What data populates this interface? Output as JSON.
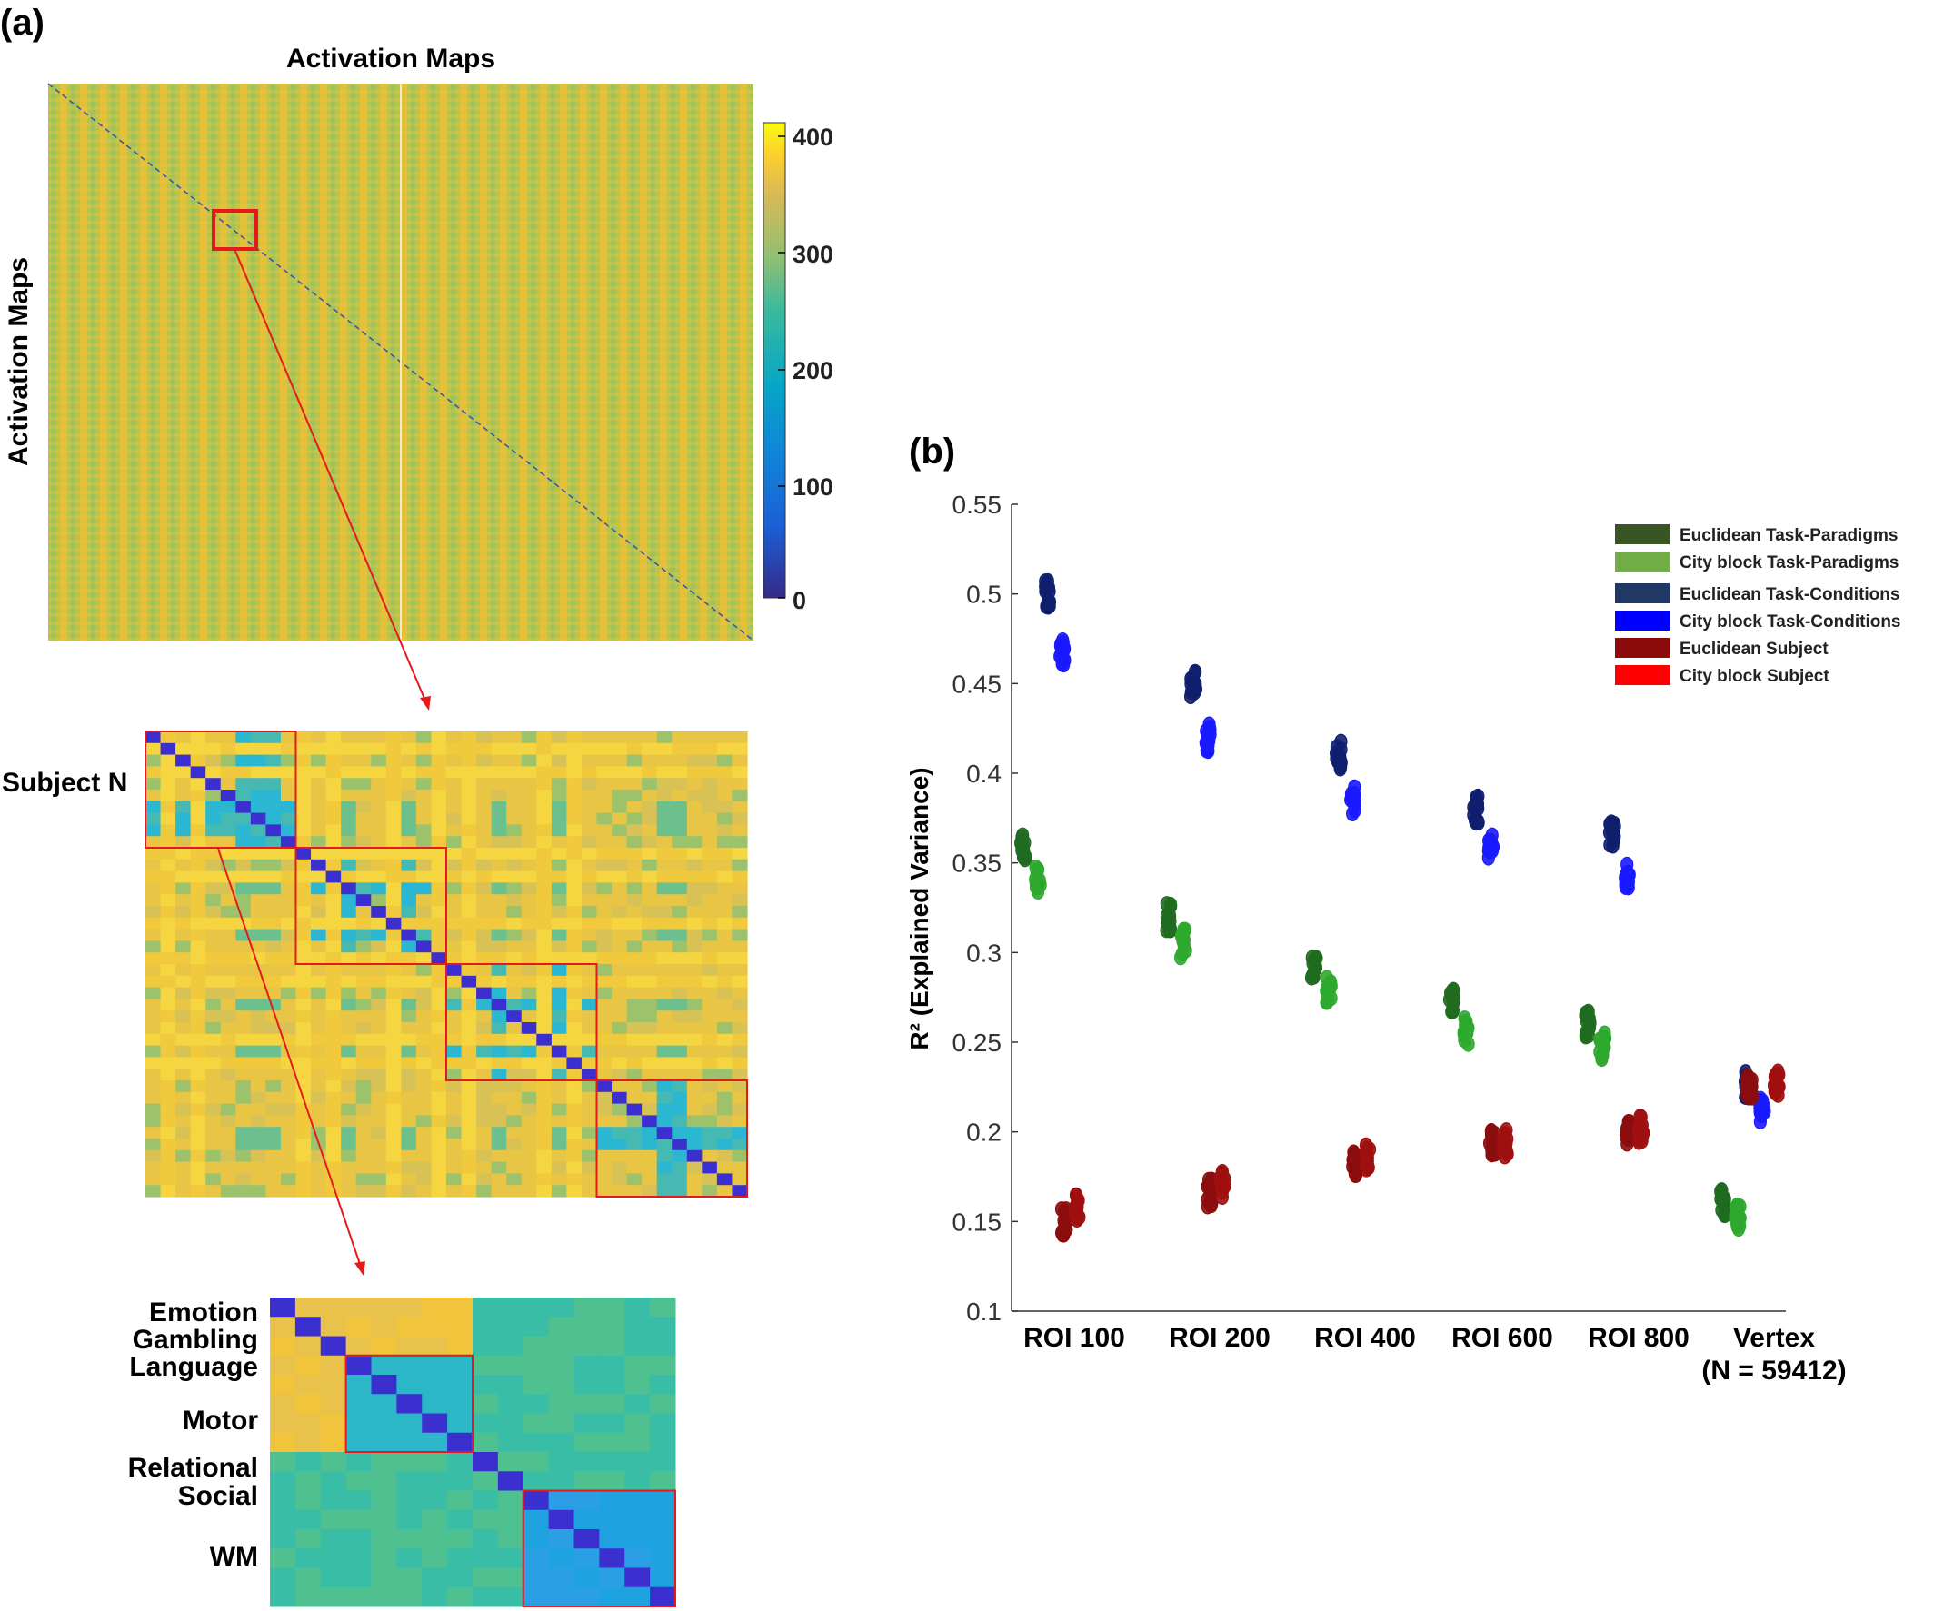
{
  "panel_a": {
    "label": "(a)",
    "top_heatmap": {
      "title": "Activation Maps",
      "ylabel": "Activation Maps",
      "colorbar_ticks": [
        "400",
        "300",
        "200",
        "100",
        "0"
      ]
    },
    "subject_heatmap": {
      "label": "Subject N"
    },
    "task_heatmap": {
      "labels": [
        "Emotion",
        "Gambling",
        "Language",
        "Motor",
        "Relational",
        "Social",
        "WM"
      ]
    },
    "colors": {
      "parula_low": "#352a87",
      "parula_mid": "#21b3c4",
      "parula_high": "#f9fb0e",
      "highlight": "#e41a1c"
    }
  },
  "panel_b": {
    "label": "(b)"
  },
  "chart_data": {
    "type": "scatter",
    "title": "",
    "xlabel": "",
    "ylabel": "R² (Explained Variance)",
    "ylim": [
      0.1,
      0.55
    ],
    "yticks": [
      "0.1",
      "0.15",
      "0.2",
      "0.25",
      "0.3",
      "0.35",
      "0.4",
      "0.45",
      "0.5",
      "0.55"
    ],
    "categories": [
      "ROI 100",
      "ROI 200",
      "ROI 400",
      "ROI 600",
      "ROI 800",
      "Vertex"
    ],
    "category_sublabels": [
      "",
      "",
      "",
      "",
      "",
      "(N = 59412)"
    ],
    "legend_position": "top-right",
    "grid": false,
    "series": [
      {
        "name": "Euclidean Task-Paradigms",
        "color": "#1f6b1f",
        "values": [
          0.358,
          0.32,
          0.29,
          0.272,
          0.26,
          0.161
        ]
      },
      {
        "name": "City block Task-Paradigms",
        "color": "#2ea82e",
        "values": [
          0.34,
          0.305,
          0.28,
          0.256,
          0.248,
          0.153
        ]
      },
      {
        "name": "Euclidean Task-Conditions",
        "color": "#0f1f6e",
        "values": [
          0.5,
          0.45,
          0.41,
          0.38,
          0.365,
          0.226
        ]
      },
      {
        "name": "City block Task-Conditions",
        "color": "#1a1aff",
        "values": [
          0.467,
          0.42,
          0.385,
          0.358,
          0.343,
          0.213
        ]
      },
      {
        "name": "Euclidean Subject",
        "color": "#8b0d0d",
        "values": [
          0.15,
          0.166,
          0.182,
          0.194,
          0.2,
          0.226
        ]
      },
      {
        "name": "City block Subject",
        "color": "#a01010",
        "values": [
          0.158,
          0.171,
          0.186,
          0.194,
          0.202,
          0.227
        ]
      }
    ],
    "legend_swatch_colors": [
      "#375623",
      "#70ad47",
      "#1f3864",
      "#0000ff",
      "#8b0a0a",
      "#ff0000"
    ]
  }
}
